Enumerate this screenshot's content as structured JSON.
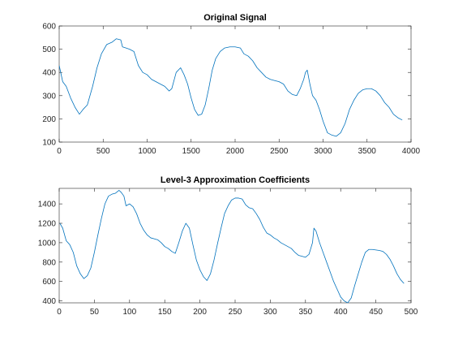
{
  "line_color": "#0072BD",
  "chart_data": [
    {
      "type": "line",
      "title": "Original Signal",
      "xlabel": "",
      "ylabel": "",
      "xlim": [
        0,
        4000
      ],
      "ylim": [
        100,
        600
      ],
      "xticks": [
        0,
        500,
        1000,
        1500,
        2000,
        2500,
        3000,
        3500,
        4000
      ],
      "yticks": [
        100,
        200,
        300,
        400,
        500,
        600
      ],
      "xtick_labels": [
        "0",
        "500",
        "1000",
        "1500",
        "2000",
        "2500",
        "3000",
        "3500",
        "4000"
      ],
      "ytick_labels": [
        "100",
        "200",
        "300",
        "400",
        "500",
        "600"
      ],
      "grid": false,
      "legend": "none",
      "series": [
        {
          "x": [
            0,
            40,
            80,
            130,
            180,
            230,
            270,
            320,
            380,
            430,
            480,
            540,
            600,
            650,
            700,
            720,
            760,
            800,
            850,
            900,
            950,
            1000,
            1050,
            1100,
            1150,
            1200,
            1250,
            1280,
            1330,
            1380,
            1420,
            1460,
            1500,
            1540,
            1580,
            1620,
            1660,
            1700,
            1740,
            1780,
            1830,
            1880,
            1940,
            2000,
            2060,
            2100,
            2150,
            2200,
            2250,
            2300,
            2350,
            2400,
            2450,
            2500,
            2550,
            2600,
            2650,
            2700,
            2740,
            2780,
            2800,
            2820,
            2850,
            2880,
            2920,
            2960,
            3000,
            3050,
            3100,
            3150,
            3200,
            3250,
            3300,
            3350,
            3400,
            3450,
            3500,
            3550,
            3600,
            3650,
            3700,
            3750,
            3800,
            3850,
            3900
          ],
          "y": [
            430,
            360,
            340,
            290,
            250,
            220,
            240,
            260,
            340,
            420,
            480,
            520,
            530,
            545,
            540,
            510,
            505,
            500,
            490,
            430,
            400,
            390,
            370,
            360,
            350,
            340,
            320,
            330,
            400,
            420,
            390,
            350,
            290,
            240,
            215,
            220,
            260,
            330,
            410,
            460,
            490,
            505,
            510,
            510,
            505,
            480,
            470,
            450,
            420,
            400,
            380,
            370,
            365,
            360,
            350,
            320,
            305,
            300,
            330,
            370,
            400,
            410,
            350,
            300,
            280,
            240,
            190,
            140,
            130,
            125,
            140,
            180,
            240,
            280,
            310,
            325,
            330,
            330,
            320,
            300,
            270,
            250,
            220,
            205,
            195
          ]
        }
      ]
    },
    {
      "type": "line",
      "title": "Level-3 Approximation Coefficients",
      "xlabel": "",
      "ylabel": "",
      "xlim": [
        0,
        500
      ],
      "ylim": [
        380,
        1560
      ],
      "xticks": [
        0,
        50,
        100,
        150,
        200,
        250,
        300,
        350,
        400,
        450,
        500
      ],
      "yticks": [
        400,
        600,
        800,
        1000,
        1200,
        1400
      ],
      "xtick_labels": [
        "0",
        "50",
        "100",
        "150",
        "200",
        "250",
        "300",
        "350",
        "400",
        "450",
        "500"
      ],
      "ytick_labels": [
        "400",
        "600",
        "800",
        "1000",
        "1200",
        "1400"
      ],
      "grid": false,
      "legend": "none",
      "series": [
        {
          "x": [
            1,
            5,
            10,
            15,
            20,
            25,
            30,
            35,
            40,
            45,
            50,
            55,
            60,
            65,
            70,
            75,
            80,
            85,
            88,
            92,
            95,
            100,
            105,
            110,
            115,
            120,
            125,
            130,
            135,
            140,
            145,
            150,
            155,
            160,
            165,
            170,
            175,
            180,
            185,
            190,
            195,
            200,
            205,
            210,
            215,
            220,
            225,
            230,
            235,
            240,
            245,
            250,
            255,
            260,
            265,
            270,
            275,
            280,
            285,
            290,
            295,
            300,
            305,
            310,
            315,
            320,
            325,
            330,
            335,
            340,
            345,
            350,
            355,
            360,
            362,
            365,
            370,
            375,
            380,
            385,
            390,
            395,
            400,
            405,
            410,
            415,
            420,
            425,
            430,
            435,
            440,
            445,
            450,
            455,
            460,
            465,
            470,
            475,
            480,
            485,
            490
          ],
          "y": [
            1200,
            1150,
            1020,
            980,
            900,
            760,
            680,
            630,
            660,
            740,
            900,
            1080,
            1250,
            1400,
            1480,
            1500,
            1510,
            1540,
            1520,
            1480,
            1380,
            1400,
            1370,
            1300,
            1200,
            1130,
            1080,
            1050,
            1040,
            1030,
            1000,
            960,
            940,
            910,
            890,
            1000,
            1120,
            1200,
            1150,
            980,
            820,
            720,
            650,
            610,
            680,
            820,
            990,
            1150,
            1300,
            1380,
            1440,
            1460,
            1460,
            1450,
            1390,
            1360,
            1350,
            1300,
            1240,
            1160,
            1100,
            1080,
            1050,
            1030,
            1000,
            980,
            960,
            940,
            900,
            870,
            860,
            850,
            880,
            1000,
            1150,
            1120,
            1000,
            900,
            800,
            700,
            600,
            520,
            440,
            400,
            380,
            430,
            560,
            680,
            800,
            900,
            930,
            930,
            925,
            920,
            910,
            880,
            830,
            760,
            680,
            620,
            580
          ]
        }
      ]
    }
  ]
}
